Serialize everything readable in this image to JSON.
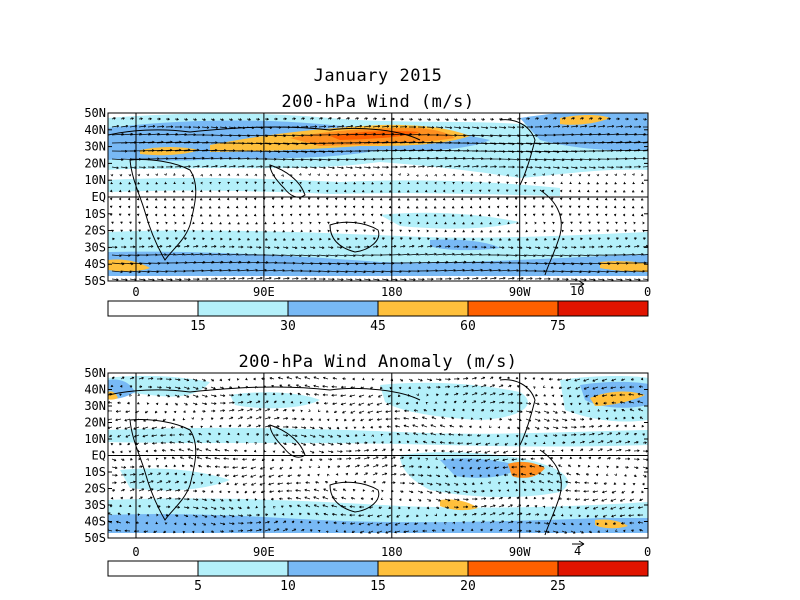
{
  "page": {
    "title_line1": "January 2015",
    "panel1_title": "200-hPa Wind (m/s)",
    "panel2_title": "200-hPa Wind Anomaly (m/s)"
  },
  "axes": {
    "lat_labels": [
      "50N",
      "40N",
      "30N",
      "20N",
      "10N",
      "EQ",
      "10S",
      "20S",
      "30S",
      "40S",
      "50S"
    ],
    "lat_values": [
      50,
      40,
      30,
      20,
      10,
      0,
      -10,
      -20,
      -30,
      -40,
      -50
    ],
    "lon_labels": [
      "0",
      "90E",
      "180",
      "90W",
      "0"
    ],
    "lon_values": [
      0,
      90,
      180,
      270,
      360
    ]
  },
  "panel1": {
    "reference_vector_label": "10",
    "colorbar": {
      "labels": [
        "15",
        "30",
        "45",
        "60",
        "75"
      ],
      "colors": [
        "#ffffff",
        "#b4f0fa",
        "#96d2fa",
        "#50a5f5",
        "#ffc03c",
        "#ff6000",
        "#e11400"
      ]
    },
    "colors": {
      "c1": "#b4f0fa",
      "c2": "#78b9f5",
      "c3": "#ffc03c",
      "c4": "#ff9020",
      "c5": "#ff6000"
    }
  },
  "panel2": {
    "reference_vector_label": "4",
    "colorbar": {
      "labels": [
        "5",
        "10",
        "15",
        "20",
        "25"
      ],
      "colors": [
        "#ffffff",
        "#b4f0fa",
        "#96d2fa",
        "#50a5f5",
        "#ffc03c",
        "#ff6000",
        "#e11400"
      ]
    },
    "colors": {
      "c1": "#b4f0fa",
      "c2": "#78b9f5",
      "c3": "#ffc03c",
      "c4": "#ff9020",
      "c5": "#ff6000"
    }
  }
}
